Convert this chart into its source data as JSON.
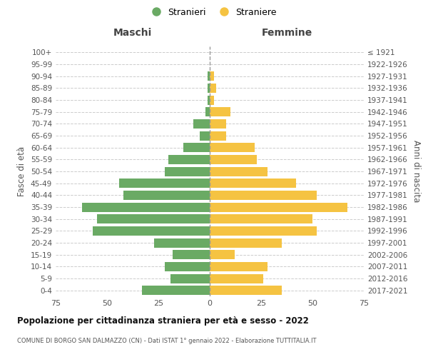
{
  "age_groups": [
    "0-4",
    "5-9",
    "10-14",
    "15-19",
    "20-24",
    "25-29",
    "30-34",
    "35-39",
    "40-44",
    "45-49",
    "50-54",
    "55-59",
    "60-64",
    "65-69",
    "70-74",
    "75-79",
    "80-84",
    "85-89",
    "90-94",
    "95-99",
    "100+"
  ],
  "birth_years": [
    "2017-2021",
    "2012-2016",
    "2007-2011",
    "2002-2006",
    "1997-2001",
    "1992-1996",
    "1987-1991",
    "1982-1986",
    "1977-1981",
    "1972-1976",
    "1967-1971",
    "1962-1966",
    "1957-1961",
    "1952-1956",
    "1947-1951",
    "1942-1946",
    "1937-1941",
    "1932-1936",
    "1927-1931",
    "1922-1926",
    "≤ 1921"
  ],
  "males": [
    33,
    19,
    22,
    18,
    27,
    57,
    55,
    62,
    42,
    44,
    22,
    20,
    13,
    5,
    8,
    2,
    1,
    1,
    1,
    0,
    0
  ],
  "females": [
    35,
    26,
    28,
    12,
    35,
    52,
    50,
    67,
    52,
    42,
    28,
    23,
    22,
    8,
    8,
    10,
    2,
    3,
    2,
    0,
    0
  ],
  "male_color": "#6aaa64",
  "female_color": "#f5c342",
  "background_color": "#ffffff",
  "grid_color": "#cccccc",
  "title": "Popolazione per cittadinanza straniera per età e sesso - 2022",
  "subtitle": "COMUNE DI BORGO SAN DALMAZZO (CN) - Dati ISTAT 1° gennaio 2022 - Elaborazione TUTTITALIA.IT",
  "xlabel_left": "Maschi",
  "xlabel_right": "Femmine",
  "ylabel_left": "Fasce di età",
  "ylabel_right": "Anni di nascita",
  "legend_male": "Stranieri",
  "legend_female": "Straniere",
  "xlim": 75
}
